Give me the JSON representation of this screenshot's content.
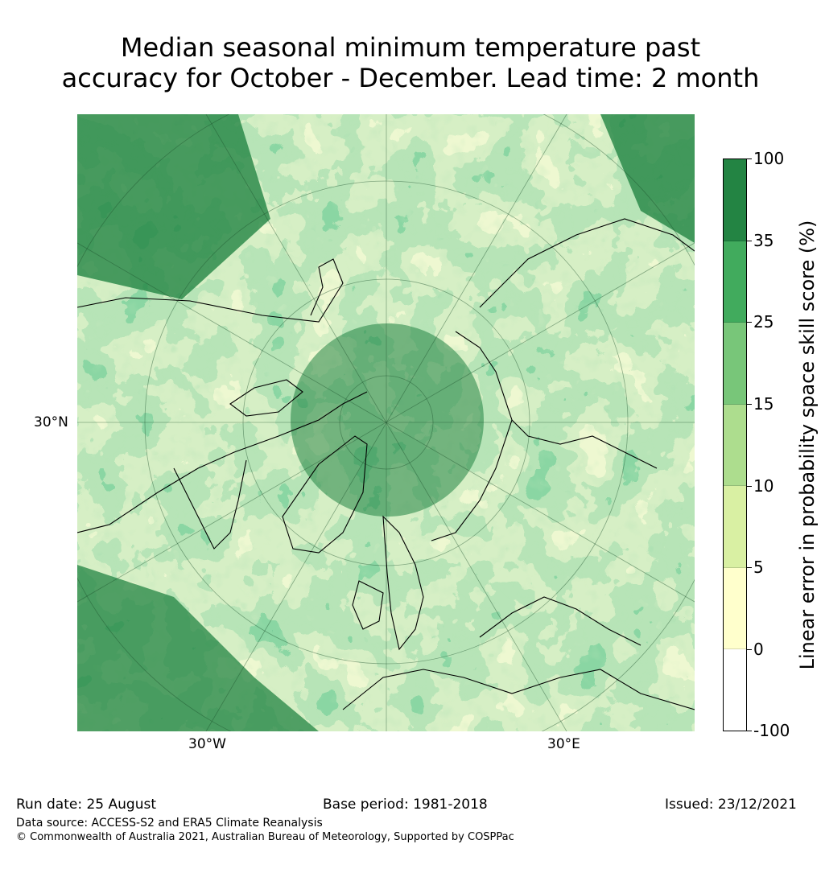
{
  "title": {
    "line1": "Median seasonal minimum temperature past",
    "line2": "accuracy for October - December. Lead time: 2 month"
  },
  "map": {
    "projection_labels": {
      "lat_30n": "30°N",
      "lon_30w": "30°W",
      "lon_30e": "30°E"
    },
    "dominant_color": "#238b45"
  },
  "colorbar": {
    "title": "Linear error in probability space skill score (%)",
    "ticks": [
      "100",
      "35",
      "25",
      "15",
      "10",
      "5",
      "0",
      "-100"
    ],
    "colors_top_to_bottom": [
      "#238443",
      "#41ab5d",
      "#78c679",
      "#addd8e",
      "#d9f0a3",
      "#ffffcc",
      "#ffffff"
    ]
  },
  "footer": {
    "run_date": "Run date: 25 August",
    "base_period": "Base period: 1981-2018",
    "issued": "Issued: 23/12/2021",
    "data_source": "Data source: ACCESS-S2 and ERA5 Climate Reanalysis",
    "copyright": "© Commonwealth of Australia 2021, Australian Bureau of Meteorology, Supported by COSPPac"
  }
}
